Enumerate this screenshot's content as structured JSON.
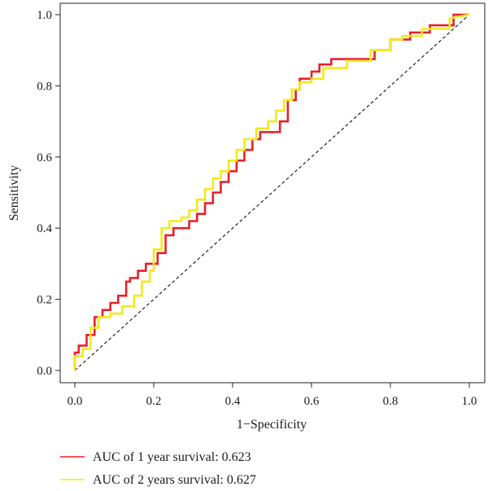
{
  "chart_data": {
    "type": "line",
    "xlabel": "1−Specificity",
    "ylabel": "Sensitivity",
    "xlim": [
      0,
      1
    ],
    "ylim": [
      0,
      1
    ],
    "xticks": [
      "0.0",
      "0.2",
      "0.4",
      "0.6",
      "0.8",
      "1.0"
    ],
    "yticks": [
      "0.0",
      "0.2",
      "0.4",
      "0.6",
      "0.8",
      "1.0"
    ],
    "grid": false,
    "legend_position": "bottom-left, below plot",
    "reference_line": {
      "x": [
        0,
        1
      ],
      "y": [
        0,
        1
      ],
      "style": "dashed",
      "color": "#222222"
    },
    "series": [
      {
        "name": "AUC of 1 year survival: 0.623",
        "color": "#e8202a",
        "x": [
          0.0,
          0.0,
          0.01,
          0.01,
          0.03,
          0.03,
          0.05,
          0.05,
          0.07,
          0.07,
          0.09,
          0.09,
          0.11,
          0.11,
          0.13,
          0.13,
          0.14,
          0.14,
          0.16,
          0.16,
          0.18,
          0.18,
          0.21,
          0.21,
          0.23,
          0.23,
          0.25,
          0.25,
          0.29,
          0.29,
          0.31,
          0.31,
          0.33,
          0.33,
          0.35,
          0.35,
          0.37,
          0.37,
          0.39,
          0.39,
          0.41,
          0.41,
          0.43,
          0.43,
          0.45,
          0.45,
          0.47,
          0.47,
          0.52,
          0.52,
          0.54,
          0.54,
          0.56,
          0.56,
          0.57,
          0.57,
          0.6,
          0.6,
          0.62,
          0.62,
          0.65,
          0.65,
          0.76,
          0.76,
          0.8,
          0.8,
          0.85,
          0.85,
          0.9,
          0.9,
          0.96,
          0.96,
          1.0
        ],
        "y": [
          0.0,
          0.05,
          0.05,
          0.07,
          0.07,
          0.1,
          0.1,
          0.15,
          0.15,
          0.17,
          0.17,
          0.19,
          0.19,
          0.21,
          0.21,
          0.25,
          0.25,
          0.26,
          0.26,
          0.28,
          0.28,
          0.3,
          0.3,
          0.33,
          0.33,
          0.38,
          0.38,
          0.4,
          0.4,
          0.42,
          0.42,
          0.44,
          0.44,
          0.47,
          0.47,
          0.5,
          0.5,
          0.53,
          0.53,
          0.56,
          0.56,
          0.59,
          0.59,
          0.62,
          0.62,
          0.65,
          0.65,
          0.67,
          0.67,
          0.7,
          0.7,
          0.76,
          0.76,
          0.79,
          0.79,
          0.82,
          0.82,
          0.84,
          0.84,
          0.86,
          0.86,
          0.875,
          0.875,
          0.9,
          0.9,
          0.93,
          0.93,
          0.95,
          0.95,
          0.97,
          0.97,
          1.0,
          1.0
        ]
      },
      {
        "name": "AUC of 2 years survival: 0.627",
        "color": "#f2ea1c",
        "x": [
          0.0,
          0.0,
          0.02,
          0.02,
          0.04,
          0.04,
          0.06,
          0.06,
          0.09,
          0.09,
          0.12,
          0.12,
          0.15,
          0.15,
          0.17,
          0.17,
          0.19,
          0.19,
          0.2,
          0.2,
          0.22,
          0.22,
          0.24,
          0.24,
          0.27,
          0.27,
          0.29,
          0.29,
          0.31,
          0.31,
          0.33,
          0.33,
          0.35,
          0.35,
          0.37,
          0.37,
          0.39,
          0.39,
          0.41,
          0.41,
          0.43,
          0.43,
          0.46,
          0.46,
          0.49,
          0.49,
          0.51,
          0.51,
          0.53,
          0.53,
          0.55,
          0.55,
          0.57,
          0.57,
          0.6,
          0.6,
          0.63,
          0.63,
          0.69,
          0.69,
          0.75,
          0.75,
          0.8,
          0.8,
          0.83,
          0.83,
          0.88,
          0.88,
          0.95,
          0.95,
          1.0
        ],
        "y": [
          0.0,
          0.04,
          0.04,
          0.06,
          0.06,
          0.12,
          0.12,
          0.15,
          0.15,
          0.16,
          0.16,
          0.18,
          0.18,
          0.21,
          0.21,
          0.25,
          0.25,
          0.28,
          0.28,
          0.34,
          0.34,
          0.4,
          0.4,
          0.42,
          0.42,
          0.43,
          0.43,
          0.45,
          0.45,
          0.48,
          0.48,
          0.51,
          0.51,
          0.54,
          0.54,
          0.56,
          0.56,
          0.59,
          0.59,
          0.62,
          0.62,
          0.65,
          0.65,
          0.68,
          0.68,
          0.7,
          0.7,
          0.73,
          0.73,
          0.76,
          0.76,
          0.79,
          0.79,
          0.81,
          0.81,
          0.82,
          0.82,
          0.85,
          0.85,
          0.87,
          0.87,
          0.9,
          0.9,
          0.93,
          0.93,
          0.94,
          0.94,
          0.96,
          0.96,
          0.99,
          1.0
        ]
      }
    ]
  }
}
